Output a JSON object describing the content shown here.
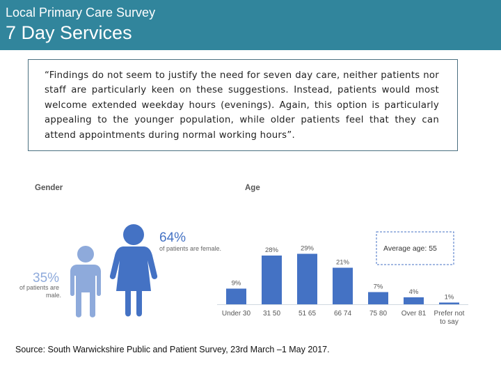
{
  "header": {
    "supertitle": "Local Primary Care Survey",
    "title": "7 Day Services"
  },
  "quote": "“Findings do not seem to justify the need for seven day care, neither patients nor staff are particularly keen on these suggestions. Instead, patients would most welcome extended weekday hours (evenings). Again, this option is particularly appealing to the younger population, while older patients feel that they can attend appointments during normal working hours”.",
  "gender": {
    "heading": "Gender",
    "female": {
      "value_label": "64%",
      "caption": "of patients are female."
    },
    "male": {
      "value_label": "35%",
      "caption_line1": "of patients are",
      "caption_line2": "male."
    }
  },
  "chart_data": {
    "type": "bar",
    "title": "Age",
    "categories": [
      "Under 30",
      "31 50",
      "51 65",
      "66 74",
      "75 80",
      "Over 81",
      "Prefer not to say"
    ],
    "category_labels": [
      [
        "Under 30"
      ],
      [
        "31 50"
      ],
      [
        "51 65"
      ],
      [
        "66 74"
      ],
      [
        "75 80"
      ],
      [
        "Over 81"
      ],
      [
        "Prefer not",
        "to say"
      ]
    ],
    "values": [
      9,
      28,
      29,
      21,
      7,
      4,
      1
    ],
    "data_labels": [
      "9%",
      "28%",
      "29%",
      "21%",
      "7%",
      "4%",
      "1%"
    ],
    "ylim": [
      0,
      30
    ],
    "xlabel": "",
    "ylabel": "",
    "annotation": "Average age: 55"
  },
  "colors": {
    "header": "#31859c",
    "bar": "#4472c4",
    "female": "#4472c4",
    "male": "#8eaadb",
    "female_pct": "#4472c4",
    "male_pct": "#8eaadb",
    "baseline": "#cfd8e0"
  },
  "source": "Source: South Warwickshire Public and Patient Survey, 23rd March –1 May 2017."
}
